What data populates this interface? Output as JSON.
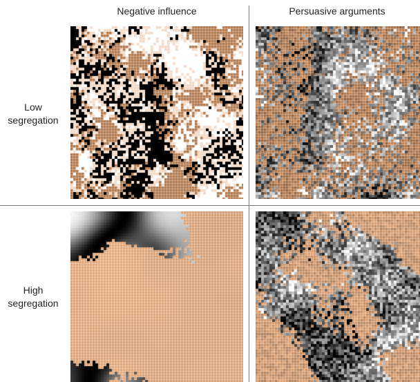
{
  "columns": [
    "Negative influence",
    "Persuasive arguments"
  ],
  "rows": [
    {
      "label_line1": "Low",
      "label_line2": "segregation"
    },
    {
      "label_line1": "High",
      "label_line2": "segregation"
    }
  ],
  "colors": {
    "agent_copper": "#b07a50",
    "agent_light": "#f3d9c6",
    "background": "#ffffff",
    "divider": "#7a7a7a"
  }
}
